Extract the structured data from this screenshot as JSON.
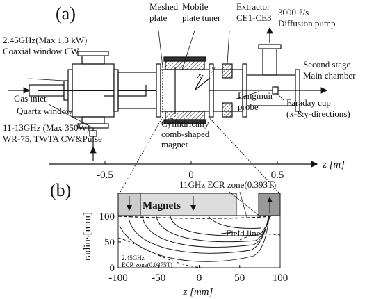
{
  "panel_a": {
    "label": "(a)",
    "meshed_plate": [
      "Meshed",
      "plate"
    ],
    "tuner": [
      "Mobile",
      "plate tuner"
    ],
    "extractor": [
      "Extractor",
      "CE1-CE3"
    ],
    "pump": [
      "3000 ℓ/s",
      "Diffusion pump"
    ],
    "coaxial": [
      "2.45GHz(Max 1.3 kW)",
      "Coaxial window CW"
    ],
    "chamber": [
      "Second stage",
      "Main chamber"
    ],
    "gas_inlet": "Gas inlet",
    "langmuir": [
      "Langmuir",
      "probe"
    ],
    "faraday": [
      "Faraday cup",
      "(x-&y-directions)"
    ],
    "quartz": "Quartz window",
    "microwave": [
      "11-13GHz (Max 350W)",
      "WR-75, TWTA CW&Pulse"
    ],
    "magnet": [
      "Cylindrically",
      "comb-shaped",
      "magnet"
    ],
    "x_label": "x",
    "y_label": "y",
    "z_ticks": [
      -0.5,
      0,
      0.5
    ],
    "z_axis_label": "z [m]"
  },
  "panel_b": {
    "label": "(b)",
    "ecr_11": "11GHz ECR zone(0.393T)",
    "magnets": "Magnets",
    "field_lines": "Field lines",
    "ecr_245": [
      "2.45GHz",
      "ECR zone(0.0875T)"
    ],
    "x_ticks": [
      -100,
      -50,
      0,
      50,
      100
    ],
    "y_ticks": [
      0,
      50,
      100
    ],
    "x_axis_label": "z [mm]",
    "y_axis_label": "radius[mm]"
  }
}
